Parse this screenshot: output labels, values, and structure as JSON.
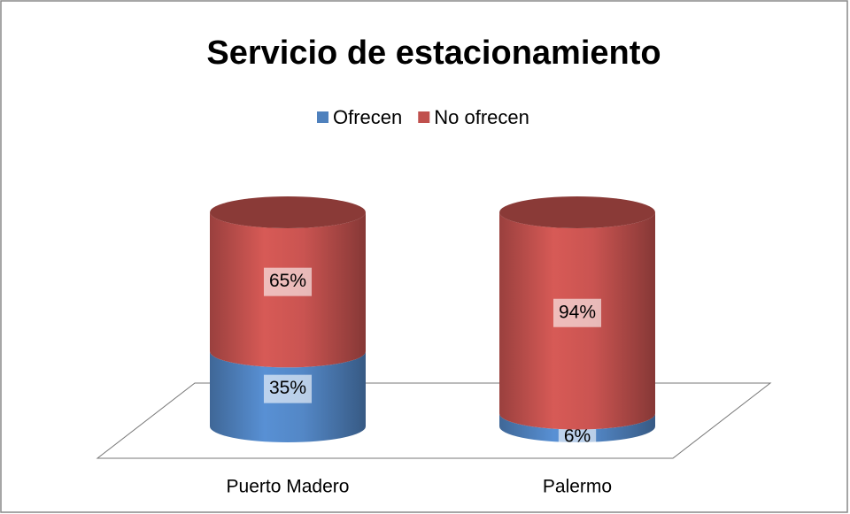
{
  "chart_data": {
    "type": "stacked-cylinder",
    "title": "Servicio de estacionamiento",
    "categories": [
      "Puerto Madero",
      "Palermo"
    ],
    "series": [
      {
        "name": "Ofrecen",
        "color": "#4f81bd",
        "values": [
          35,
          6
        ],
        "value_labels": [
          "35%",
          "6%"
        ]
      },
      {
        "name": "No ofrecen",
        "color": "#c0504d",
        "values": [
          65,
          94
        ],
        "value_labels": [
          "65%",
          "94%"
        ]
      }
    ],
    "legend": "top"
  }
}
